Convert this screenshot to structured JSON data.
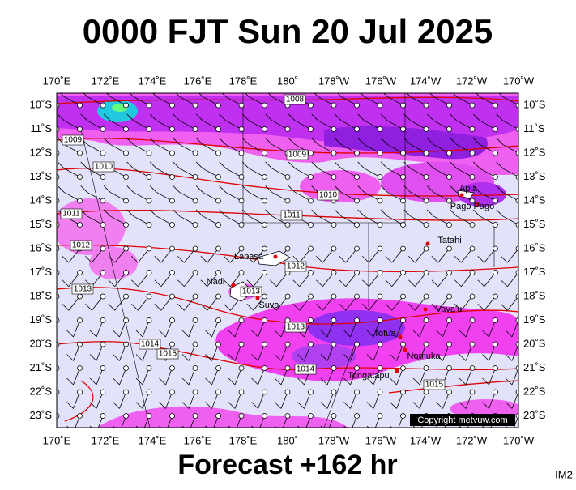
{
  "header": {
    "title": "0000 FJT Sun 20 Jul 2025"
  },
  "axis": {
    "lon_labels": [
      "170˚E",
      "172˚E",
      "174˚E",
      "176˚E",
      "178˚E",
      "180˚",
      "178˚W",
      "176˚W",
      "174˚W",
      "172˚W",
      "170˚W"
    ],
    "lat_labels": [
      "10˚S",
      "11˚S",
      "12˚S",
      "13˚S",
      "14˚S",
      "15˚S",
      "16˚S",
      "17˚S",
      "18˚S",
      "19˚S",
      "20˚S",
      "21˚S",
      "22˚S",
      "23˚S"
    ]
  },
  "isobars": [
    {
      "label": "1008"
    },
    {
      "label": "1009"
    },
    {
      "label": "1009"
    },
    {
      "label": "1010"
    },
    {
      "label": "1010"
    },
    {
      "label": "1011"
    },
    {
      "label": "1011"
    },
    {
      "label": "1012"
    },
    {
      "label": "1012"
    },
    {
      "label": "1013"
    },
    {
      "label": "1013"
    },
    {
      "label": "1013"
    },
    {
      "label": "1014"
    },
    {
      "label": "1015"
    },
    {
      "label": "1014"
    },
    {
      "label": "1015"
    }
  ],
  "places": [
    {
      "label": "Apia"
    },
    {
      "label": "Pago Pago"
    },
    {
      "label": "Tatahi"
    },
    {
      "label": "Labasa"
    },
    {
      "label": "Nadi"
    },
    {
      "label": "Suva"
    },
    {
      "label": "Vava'u"
    },
    {
      "label": "Tofua"
    },
    {
      "label": "Nomuka"
    },
    {
      "label": "Tongatapu"
    }
  ],
  "footer": {
    "forecast": "Forecast +162 hr",
    "copyright": "Copyright metvuw.com",
    "code": "IM2"
  }
}
